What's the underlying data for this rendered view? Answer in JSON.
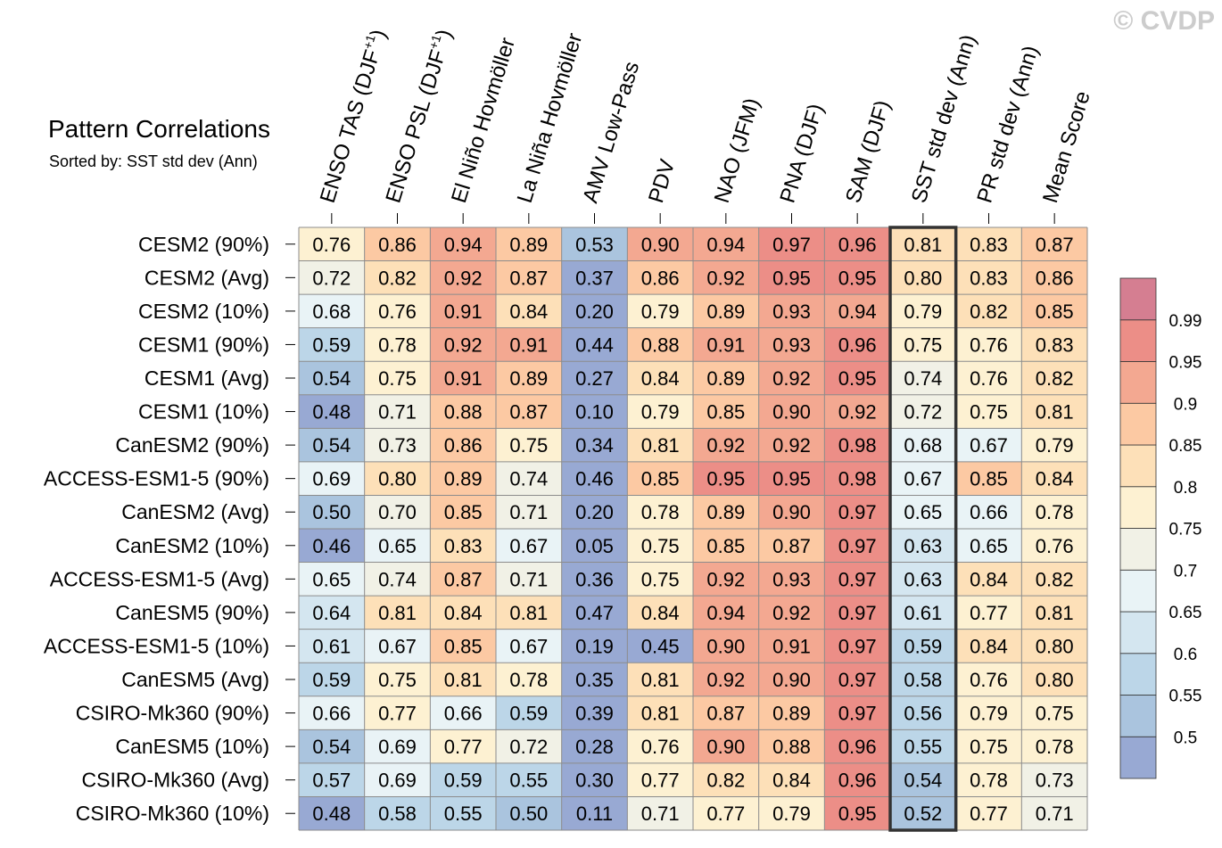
{
  "watermark": "© CVDP",
  "chart_data": {
    "type": "heatmap",
    "title": "Pattern Correlations",
    "subtitle": "Sorted by: SST std dev (Ann)",
    "highlight_column": "SST std dev (Ann)",
    "columns": [
      {
        "label": "ENSO TAS (DJF",
        "sup": "+1",
        "tail": ")"
      },
      {
        "label": "ENSO PSL (DJF",
        "sup": "+1",
        "tail": ")"
      },
      {
        "label": "El Niño Hovmöller"
      },
      {
        "label": "La Niña Hovmöller"
      },
      {
        "label": "AMV Low-Pass"
      },
      {
        "label": "PDV"
      },
      {
        "label": "NAO (JFM)"
      },
      {
        "label": "PNA (DJF)"
      },
      {
        "label": "SAM (DJF)"
      },
      {
        "label": "SST std dev (Ann)"
      },
      {
        "label": "PR std dev (Ann)"
      },
      {
        "label": "Mean Score"
      }
    ],
    "rows": [
      "CESM2 (90%)",
      "CESM2 (Avg)",
      "CESM2 (10%)",
      "CESM1 (90%)",
      "CESM1 (Avg)",
      "CESM1 (10%)",
      "CanESM2 (90%)",
      "ACCESS-ESM1-5 (90%)",
      "CanESM2 (Avg)",
      "CanESM2 (10%)",
      "ACCESS-ESM1-5 (Avg)",
      "CanESM5 (90%)",
      "ACCESS-ESM1-5 (10%)",
      "CanESM5 (Avg)",
      "CSIRO-Mk360 (90%)",
      "CanESM5 (10%)",
      "CSIRO-Mk360 (Avg)",
      "CSIRO-Mk360 (10%)"
    ],
    "values": [
      [
        "0.76",
        "0.86",
        "0.94",
        "0.89",
        "0.53",
        "0.90",
        "0.94",
        "0.97",
        "0.96",
        "0.81",
        "0.83",
        "0.87"
      ],
      [
        "0.72",
        "0.82",
        "0.92",
        "0.87",
        "0.37",
        "0.86",
        "0.92",
        "0.95",
        "0.95",
        "0.80",
        "0.83",
        "0.86"
      ],
      [
        "0.68",
        "0.76",
        "0.91",
        "0.84",
        "0.20",
        "0.79",
        "0.89",
        "0.93",
        "0.94",
        "0.79",
        "0.82",
        "0.85"
      ],
      [
        "0.59",
        "0.78",
        "0.92",
        "0.91",
        "0.44",
        "0.88",
        "0.91",
        "0.93",
        "0.96",
        "0.75",
        "0.76",
        "0.83"
      ],
      [
        "0.54",
        "0.75",
        "0.91",
        "0.89",
        "0.27",
        "0.84",
        "0.89",
        "0.92",
        "0.95",
        "0.74",
        "0.76",
        "0.82"
      ],
      [
        "0.48",
        "0.71",
        "0.88",
        "0.87",
        "0.10",
        "0.79",
        "0.85",
        "0.90",
        "0.92",
        "0.72",
        "0.75",
        "0.81"
      ],
      [
        "0.54",
        "0.73",
        "0.86",
        "0.75",
        "0.34",
        "0.81",
        "0.92",
        "0.92",
        "0.98",
        "0.68",
        "0.67",
        "0.79"
      ],
      [
        "0.69",
        "0.80",
        "0.89",
        "0.74",
        "0.46",
        "0.85",
        "0.95",
        "0.95",
        "0.98",
        "0.67",
        "0.85",
        "0.84"
      ],
      [
        "0.50",
        "0.70",
        "0.85",
        "0.71",
        "0.20",
        "0.78",
        "0.89",
        "0.90",
        "0.97",
        "0.65",
        "0.66",
        "0.78"
      ],
      [
        "0.46",
        "0.65",
        "0.83",
        "0.67",
        "0.05",
        "0.75",
        "0.85",
        "0.87",
        "0.97",
        "0.63",
        "0.65",
        "0.76"
      ],
      [
        "0.65",
        "0.74",
        "0.87",
        "0.71",
        "0.36",
        "0.75",
        "0.92",
        "0.93",
        "0.97",
        "0.63",
        "0.84",
        "0.82"
      ],
      [
        "0.64",
        "0.81",
        "0.84",
        "0.81",
        "0.47",
        "0.84",
        "0.94",
        "0.92",
        "0.97",
        "0.61",
        "0.77",
        "0.81"
      ],
      [
        "0.61",
        "0.67",
        "0.85",
        "0.67",
        "0.19",
        "0.45",
        "0.90",
        "0.91",
        "0.97",
        "0.59",
        "0.84",
        "0.80"
      ],
      [
        "0.59",
        "0.75",
        "0.81",
        "0.78",
        "0.35",
        "0.81",
        "0.92",
        "0.90",
        "0.97",
        "0.58",
        "0.76",
        "0.80"
      ],
      [
        "0.66",
        "0.77",
        "0.66",
        "0.59",
        "0.39",
        "0.81",
        "0.87",
        "0.89",
        "0.97",
        "0.56",
        "0.79",
        "0.75"
      ],
      [
        "0.54",
        "0.69",
        "0.77",
        "0.72",
        "0.28",
        "0.76",
        "0.90",
        "0.88",
        "0.96",
        "0.55",
        "0.75",
        "0.78"
      ],
      [
        "0.57",
        "0.69",
        "0.59",
        "0.55",
        "0.30",
        "0.77",
        "0.82",
        "0.84",
        "0.96",
        "0.54",
        "0.78",
        "0.73"
      ],
      [
        "0.48",
        "0.58",
        "0.55",
        "0.50",
        "0.11",
        "0.71",
        "0.77",
        "0.79",
        "0.95",
        "0.52",
        "0.77",
        "0.71"
      ]
    ],
    "colorbar": {
      "levels": [
        0.5,
        0.55,
        0.6,
        0.65,
        0.7,
        0.75,
        0.8,
        0.85,
        0.9,
        0.95,
        0.99
      ],
      "labels": [
        "0.5",
        "0.55",
        "0.6",
        "0.65",
        "0.7",
        "0.75",
        "0.8",
        "0.85",
        "0.9",
        "0.95",
        "0.99"
      ],
      "colors": [
        "#98a9d3",
        "#aac4de",
        "#bcd6e8",
        "#d4e6f0",
        "#e9f3f6",
        "#f1f1e6",
        "#fdf1d2",
        "#fde0b8",
        "#fcc9a3",
        "#f3a891",
        "#ec8e87",
        "#d57e91"
      ]
    },
    "cell_border_color": "#8c8c8c",
    "highlight_border_color": "#333333"
  }
}
